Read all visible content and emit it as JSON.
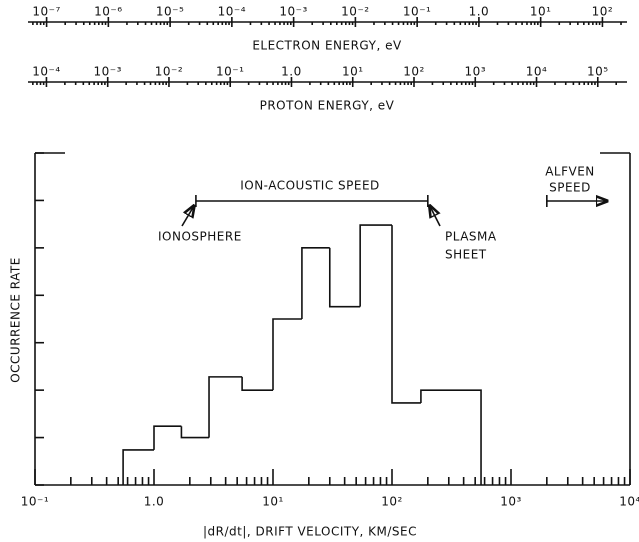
{
  "chart_data": {
    "type": "histogram",
    "x_label": "|dR/dt|, DRIFT VELOCITY, KM/SEC",
    "y_label": "OCCURRENCE RATE",
    "log_x": true,
    "bins": [
      0.55,
      1.0,
      1.7,
      2.9,
      5.5,
      10,
      17.5,
      30,
      54,
      100,
      175,
      560
    ],
    "counts": [
      0.74,
      1.24,
      1.0,
      2.28,
      2.0,
      3.5,
      5.0,
      3.76,
      5.48,
      1.73,
      2.0
    ],
    "color": "#111111",
    "xlim": [
      0.1,
      10000
    ],
    "xticks": [
      {
        "value": 0.1,
        "label": "10⁻¹"
      },
      {
        "value": 1,
        "label": "1.0"
      },
      {
        "value": 10,
        "label": "10¹"
      },
      {
        "value": 100,
        "label": "10²"
      },
      {
        "value": 1000,
        "label": "10³"
      },
      {
        "value": 10000,
        "label": "10⁴"
      }
    ],
    "ylim": [
      0,
      7
    ],
    "yticks": [
      0,
      1,
      2,
      3,
      4,
      5,
      6,
      7
    ],
    "annotations": {
      "ion_acoustic": {
        "text": "ION-ACOUSTIC SPEED",
        "range": [
          2.25,
          200
        ]
      },
      "ionosphere": {
        "lines": [
          "IONOSPHERE"
        ]
      },
      "plasma_sheet": {
        "lines": [
          "PLASMA",
          "SHEET"
        ]
      },
      "alfven": {
        "lines": [
          "ALFVEN",
          "SPEED"
        ],
        "from": 2000
      }
    },
    "secondary_axes": [
      {
        "label": "ELECTRON ENERGY, eV",
        "xlim": [
          5e-08,
          250
        ],
        "xticks": [
          {
            "value": 1e-07,
            "label": "10⁻⁷"
          },
          {
            "value": 1e-06,
            "label": "10⁻⁶"
          },
          {
            "value": 1e-05,
            "label": "10⁻⁵"
          },
          {
            "value": 0.0001,
            "label": "10⁻⁴"
          },
          {
            "value": 0.001,
            "label": "10⁻³"
          },
          {
            "value": 0.01,
            "label": "10⁻²"
          },
          {
            "value": 0.1,
            "label": "10⁻¹"
          },
          {
            "value": 1,
            "label": "1.0"
          },
          {
            "value": 10,
            "label": "10¹"
          },
          {
            "value": 100,
            "label": "10²"
          }
        ]
      },
      {
        "label": "PROTON ENERGY, eV",
        "xlim": [
          5e-05,
          300000
        ],
        "xticks": [
          {
            "value": 0.0001,
            "label": "10⁻⁴"
          },
          {
            "value": 0.001,
            "label": "10⁻³"
          },
          {
            "value": 0.01,
            "label": "10⁻²"
          },
          {
            "value": 0.1,
            "label": "10⁻¹"
          },
          {
            "value": 1,
            "label": "1.0"
          },
          {
            "value": 10,
            "label": "10¹"
          },
          {
            "value": 100,
            "label": "10²"
          },
          {
            "value": 1000,
            "label": "10³"
          },
          {
            "value": 10000,
            "label": "10⁴"
          },
          {
            "value": 100000,
            "label": "10⁵"
          }
        ]
      }
    ]
  }
}
